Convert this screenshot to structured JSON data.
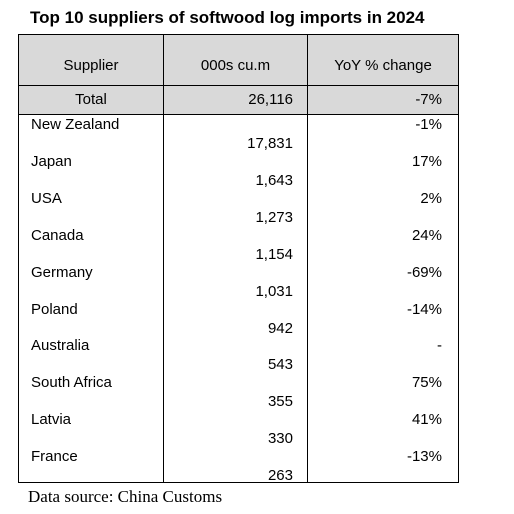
{
  "title": "Top 10 suppliers of softwood log imports in 2024",
  "columns": {
    "supplier": "Supplier",
    "volume": "000s cu.m",
    "yoy": "YoY % change"
  },
  "total": {
    "label": "Total",
    "volume": "26,116",
    "yoy": "-7%"
  },
  "rows": [
    {
      "supplier": "New Zealand",
      "volume": "17,831",
      "yoy": "-1%"
    },
    {
      "supplier": "Japan",
      "volume": "1,643",
      "yoy": "17%"
    },
    {
      "supplier": "USA",
      "volume": "1,273",
      "yoy": "2%"
    },
    {
      "supplier": "Canada",
      "volume": "1,154",
      "yoy": "24%"
    },
    {
      "supplier": "Germany",
      "volume": "1,031",
      "yoy": "-69%"
    },
    {
      "supplier": "Poland",
      "volume": "942",
      "yoy": "-14%"
    },
    {
      "supplier": "Australia",
      "volume": "543",
      "yoy": "-"
    },
    {
      "supplier": "South Africa",
      "volume": "355",
      "yoy": "75%"
    },
    {
      "supplier": "Latvia",
      "volume": "330",
      "yoy": "41%"
    },
    {
      "supplier": "France",
      "volume": "263",
      "yoy": "-13%"
    }
  ],
  "source": "Data source: China Customs",
  "colors": {
    "header_fill": "#d9d9d9",
    "border": "#000000"
  }
}
